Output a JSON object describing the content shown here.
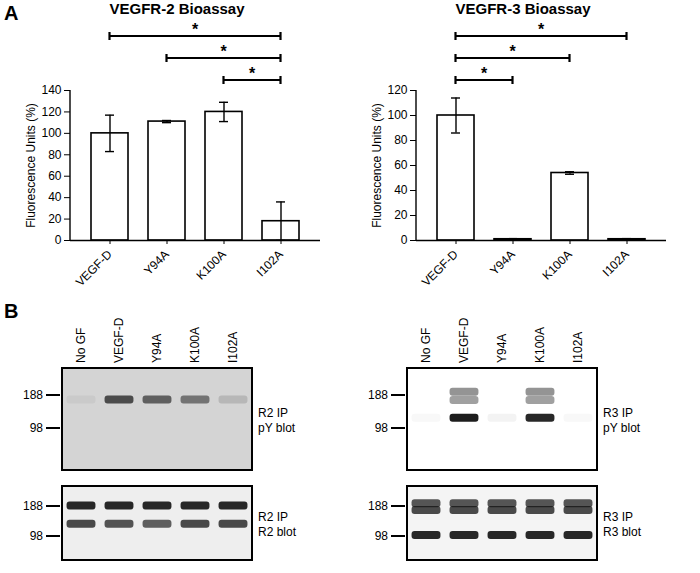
{
  "panel_labels": [
    "A",
    "B"
  ],
  "chart_data": [
    {
      "type": "bar",
      "title": "VEGFR-2 Bioassay",
      "color": "#000000",
      "categories": [
        "VEGF-D",
        "Y94A",
        "K100A",
        "I102A"
      ],
      "values": [
        100,
        111,
        120,
        18
      ],
      "errors": [
        17,
        1,
        9,
        18
      ],
      "ylim": [
        0,
        140
      ],
      "yticks": [
        0,
        20,
        40,
        60,
        80,
        100,
        120,
        140
      ],
      "y_label": "Fluorescence Units (%)",
      "significance": [
        {
          "from": "VEGF-D",
          "to": "I102A",
          "label": "*"
        },
        {
          "from": "Y94A",
          "to": "I102A",
          "label": "*"
        },
        {
          "from": "K100A",
          "to": "I102A",
          "label": "*"
        }
      ]
    },
    {
      "type": "bar",
      "title": "VEGFR-3 Bioassay",
      "color": "#000000",
      "categories": [
        "VEGF-D",
        "Y94A",
        "K100A",
        "I102A"
      ],
      "values": [
        100,
        1,
        54,
        1
      ],
      "errors": [
        14,
        0.5,
        1,
        0.5
      ],
      "ylim": [
        0,
        120
      ],
      "yticks": [
        0,
        20,
        40,
        60,
        80,
        100,
        120
      ],
      "y_label": "Fluorescence Units (%)",
      "significance": [
        {
          "from": "VEGF-D",
          "to": "I102A",
          "label": "*"
        },
        {
          "from": "VEGF-D",
          "to": "K100A",
          "label": "*"
        },
        {
          "from": "VEGF-D",
          "to": "Y94A",
          "label": "*"
        }
      ]
    }
  ],
  "blots": [
    {
      "lanes": [
        "No GF",
        "VEGF-D",
        "Y94A",
        "K100A",
        "I102A"
      ],
      "panels": [
        {
          "label": [
            "R2 IP",
            "pY blot"
          ],
          "markers": [
            188,
            98
          ],
          "bands": [
            {
              "mw": 172,
              "intensity": [
                0.05,
                0.7,
                0.6,
                0.5,
                0.15
              ]
            }
          ]
        },
        {
          "label": [
            "R2 IP",
            "R2 blot"
          ],
          "markers": [
            188,
            98
          ],
          "bands": [
            {
              "mw": 190,
              "intensity": [
                0.9,
                0.9,
                0.9,
                0.9,
                0.9
              ]
            },
            {
              "mw": 128,
              "intensity": [
                0.75,
                0.7,
                0.65,
                0.75,
                0.75
              ]
            }
          ]
        }
      ]
    },
    {
      "lanes": [
        "No GF",
        "VEGF-D",
        "Y94A",
        "K100A",
        "I102A"
      ],
      "panels": [
        {
          "label": [
            "R3 IP",
            "pY blot"
          ],
          "markers": [
            188,
            98
          ],
          "bands": [
            {
              "mw": 200,
              "intensity": [
                0,
                0.45,
                0,
                0.45,
                0
              ]
            },
            {
              "mw": 170,
              "intensity": [
                0,
                0.4,
                0,
                0.4,
                0
              ]
            },
            {
              "mw": 120,
              "intensity": [
                0.03,
                0.95,
                0.05,
                0.9,
                0.03
              ]
            }
          ]
        },
        {
          "label": [
            "R3 IP",
            "R3 blot"
          ],
          "markers": [
            188,
            98
          ],
          "bands": [
            {
              "mw": 200,
              "intensity": [
                0.7,
                0.7,
                0.7,
                0.7,
                0.7
              ]
            },
            {
              "mw": 172,
              "intensity": [
                0.75,
                0.75,
                0.75,
                0.75,
                0.75
              ]
            },
            {
              "mw": 100,
              "intensity": [
                0.9,
                0.9,
                0.9,
                0.9,
                0.9
              ]
            }
          ]
        }
      ]
    }
  ]
}
